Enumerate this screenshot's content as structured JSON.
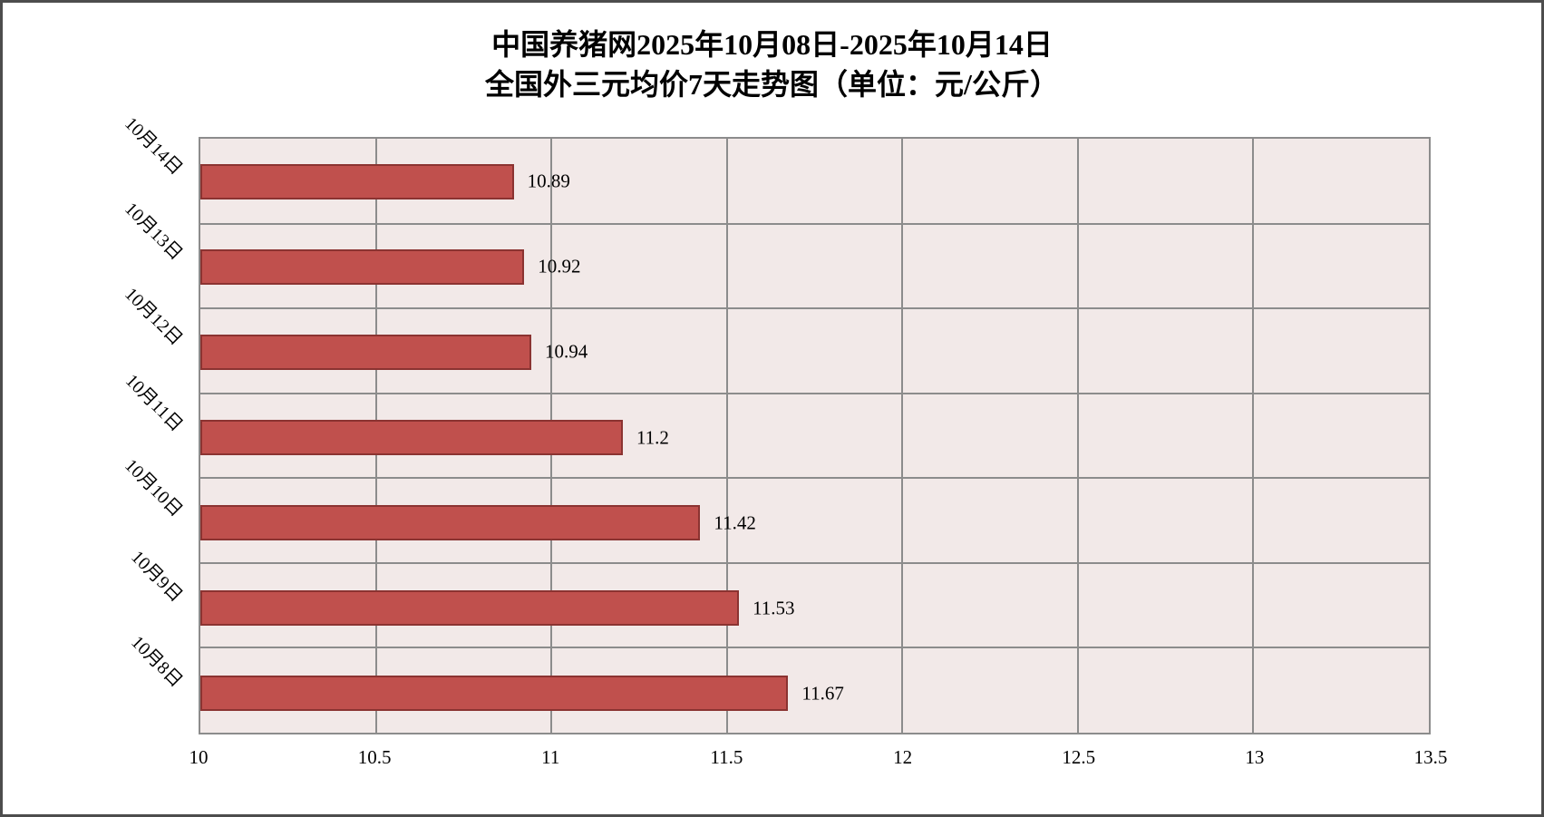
{
  "title": {
    "line1": "中国养猪网2025年10月08日-2025年10月14日",
    "line2": "全国外三元均价7天走势图（单位：元/公斤）"
  },
  "chart_data": {
    "type": "bar",
    "orientation": "horizontal",
    "title": "中国养猪网2025年10月08日-2025年10月14日",
    "subtitle": "全国外三元均价7天走势图（单位：元/公斤）",
    "unit": "元/公斤",
    "categories": [
      "10月14日",
      "10月13日",
      "10月12日",
      "10月11日",
      "10月10日",
      "10月9日",
      "10月8日"
    ],
    "values": [
      10.89,
      10.92,
      10.94,
      11.2,
      11.42,
      11.53,
      11.67
    ],
    "data_labels": [
      "10.89",
      "10.92",
      "10.94",
      "11.2",
      "11.42",
      "11.53",
      "11.67"
    ],
    "x_ticks": [
      "10",
      "10.5",
      "11",
      "11.5",
      "12",
      "12.5",
      "13",
      "13.5"
    ],
    "xlim": [
      10,
      13.5
    ],
    "grid": true,
    "legend": "none",
    "colors": {
      "bar_fill": "#C0504D",
      "bar_border": "#8B3331",
      "plot_bg": "#F2E9E8",
      "gridline": "#8C8C8C",
      "plot_border": "#8C8C8C",
      "frame_border": "#4D4D4D",
      "background": "#FFFFFF",
      "text": "#000000"
    }
  }
}
